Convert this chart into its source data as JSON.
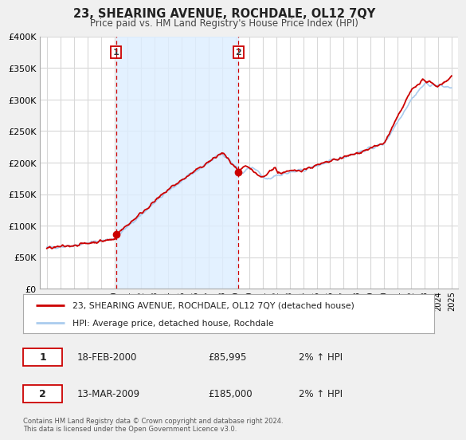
{
  "title": "23, SHEARING AVENUE, ROCHDALE, OL12 7QY",
  "subtitle": "Price paid vs. HM Land Registry's House Price Index (HPI)",
  "legend_line1": "23, SHEARING AVENUE, ROCHDALE, OL12 7QY (detached house)",
  "legend_line2": "HPI: Average price, detached house, Rochdale",
  "table_rows": [
    {
      "num": "1",
      "date": "18-FEB-2000",
      "price": "£85,995",
      "hpi": "2% ↑ HPI"
    },
    {
      "num": "2",
      "date": "13-MAR-2009",
      "price": "£185,000",
      "hpi": "2% ↑ HPI"
    }
  ],
  "footnote1": "Contains HM Land Registry data © Crown copyright and database right 2024.",
  "footnote2": "This data is licensed under the Open Government Licence v3.0.",
  "sale1_year": 2000.13,
  "sale1_price": 85995,
  "sale2_year": 2009.2,
  "sale2_price": 185000,
  "background_color": "#f0f0f0",
  "plot_bg_color": "#ffffff",
  "red_line_color": "#cc0000",
  "blue_line_color": "#aaccee",
  "marker_color": "#cc0000",
  "vline_color": "#cc0000",
  "shade_color": "#ddeeff",
  "ylim": [
    0,
    400000
  ],
  "yticks": [
    0,
    50000,
    100000,
    150000,
    200000,
    250000,
    300000,
    350000,
    400000
  ],
  "ytick_labels": [
    "£0",
    "£50K",
    "£100K",
    "£150K",
    "£200K",
    "£250K",
    "£300K",
    "£350K",
    "£400K"
  ],
  "xlim_start": 1994.5,
  "xlim_end": 2025.5,
  "xticks": [
    1995,
    1996,
    1997,
    1998,
    1999,
    2000,
    2001,
    2002,
    2003,
    2004,
    2005,
    2006,
    2007,
    2008,
    2009,
    2010,
    2011,
    2012,
    2013,
    2014,
    2015,
    2016,
    2017,
    2018,
    2019,
    2020,
    2021,
    2022,
    2023,
    2024,
    2025
  ]
}
